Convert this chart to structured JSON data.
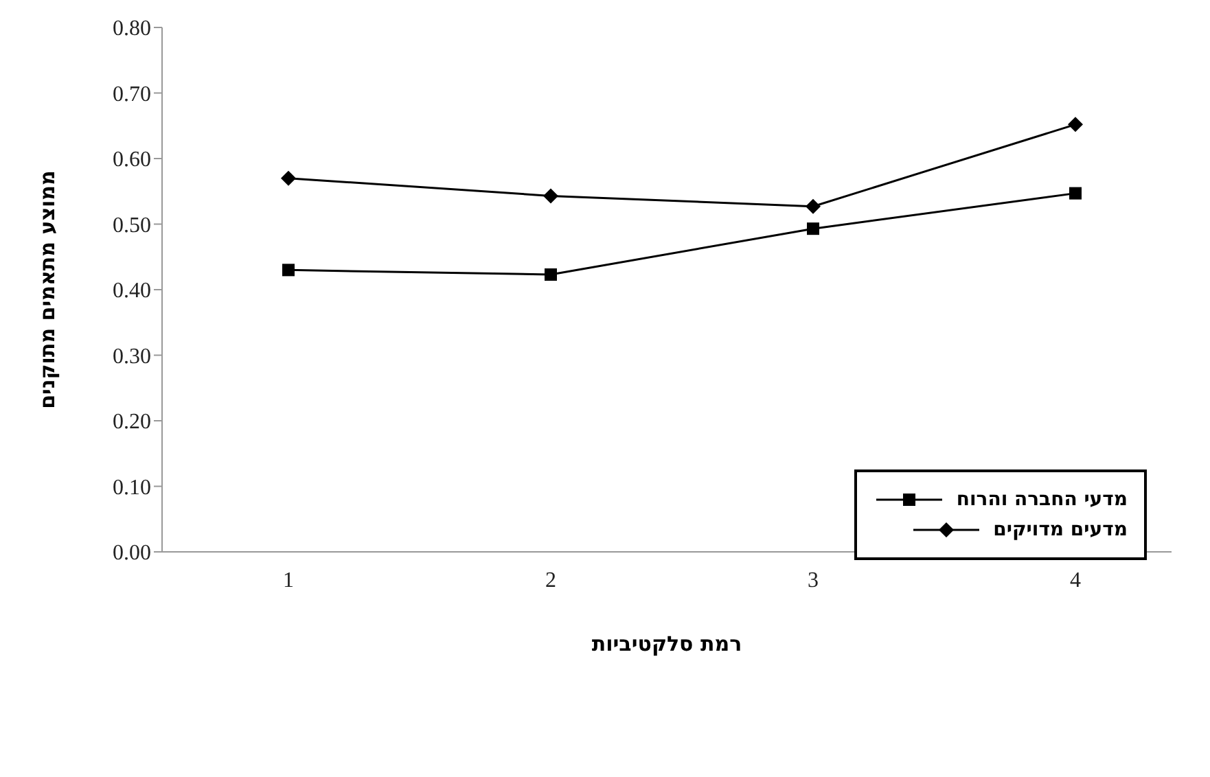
{
  "chart_data": {
    "type": "line",
    "xlabel": "רמת סלקטיביות",
    "ylabel": "ממוצע מתאמים מתוקנים",
    "categories": [
      "1",
      "2",
      "3",
      "4"
    ],
    "series": [
      {
        "name": "מדעי החברה והרוח",
        "color": "#000000",
        "marker": "square",
        "values": [
          0.43,
          0.423,
          0.493,
          0.547
        ]
      },
      {
        "name": "מדעים מדויקים",
        "color": "#000000",
        "marker": "diamond",
        "values": [
          0.57,
          0.543,
          0.527,
          0.652
        ]
      }
    ],
    "ylim": [
      0,
      0.8
    ],
    "yticks": [
      {
        "value": 0,
        "label": "0.00"
      },
      {
        "value": 0.1,
        "label": "0.10"
      },
      {
        "value": 0.2,
        "label": "0.20"
      },
      {
        "value": 0.3,
        "label": "0.30"
      },
      {
        "value": 0.4,
        "label": "0.40"
      },
      {
        "value": 0.5,
        "label": "0.50"
      },
      {
        "value": 0.6,
        "label": "0.60"
      },
      {
        "value": 0.7,
        "label": "0.70"
      },
      {
        "value": 0.8,
        "label": "0.80"
      }
    ],
    "grid": false,
    "legend": "bottom right",
    "line_style": "solid"
  }
}
